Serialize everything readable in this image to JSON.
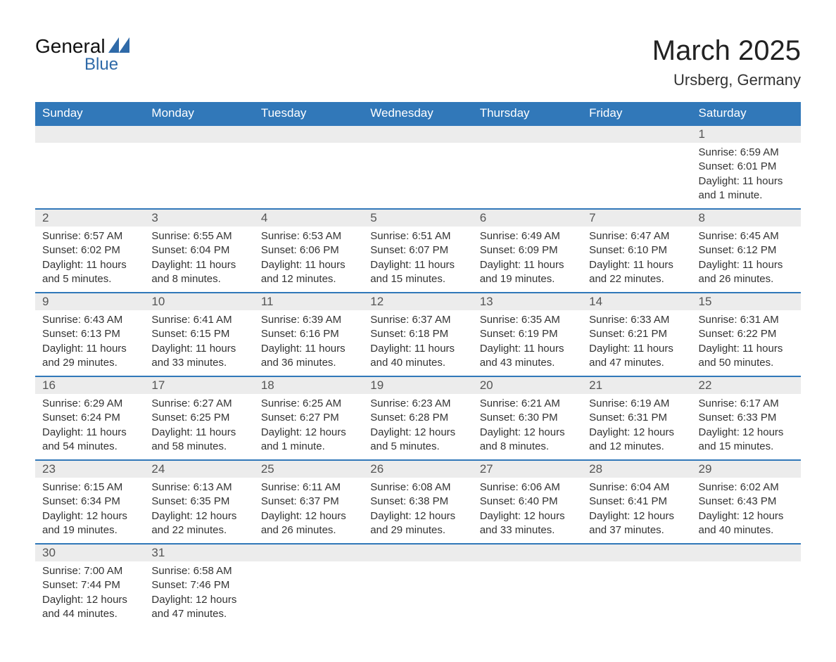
{
  "logo": {
    "text_general": "General",
    "text_blue": "Blue",
    "mark_color": "#2f6aa8"
  },
  "title": {
    "month": "March 2025",
    "location": "Ursberg, Germany"
  },
  "colors": {
    "header_bg": "#3178b9",
    "header_text": "#ffffff",
    "daynum_bg": "#ececec",
    "row_border": "#3178b9",
    "text": "#333333"
  },
  "weekdays": [
    "Sunday",
    "Monday",
    "Tuesday",
    "Wednesday",
    "Thursday",
    "Friday",
    "Saturday"
  ],
  "weeks": [
    {
      "days": [
        {
          "num": "",
          "sunrise": "",
          "sunset": "",
          "daylight1": "",
          "daylight2": ""
        },
        {
          "num": "",
          "sunrise": "",
          "sunset": "",
          "daylight1": "",
          "daylight2": ""
        },
        {
          "num": "",
          "sunrise": "",
          "sunset": "",
          "daylight1": "",
          "daylight2": ""
        },
        {
          "num": "",
          "sunrise": "",
          "sunset": "",
          "daylight1": "",
          "daylight2": ""
        },
        {
          "num": "",
          "sunrise": "",
          "sunset": "",
          "daylight1": "",
          "daylight2": ""
        },
        {
          "num": "",
          "sunrise": "",
          "sunset": "",
          "daylight1": "",
          "daylight2": ""
        },
        {
          "num": "1",
          "sunrise": "Sunrise: 6:59 AM",
          "sunset": "Sunset: 6:01 PM",
          "daylight1": "Daylight: 11 hours",
          "daylight2": "and 1 minute."
        }
      ]
    },
    {
      "days": [
        {
          "num": "2",
          "sunrise": "Sunrise: 6:57 AM",
          "sunset": "Sunset: 6:02 PM",
          "daylight1": "Daylight: 11 hours",
          "daylight2": "and 5 minutes."
        },
        {
          "num": "3",
          "sunrise": "Sunrise: 6:55 AM",
          "sunset": "Sunset: 6:04 PM",
          "daylight1": "Daylight: 11 hours",
          "daylight2": "and 8 minutes."
        },
        {
          "num": "4",
          "sunrise": "Sunrise: 6:53 AM",
          "sunset": "Sunset: 6:06 PM",
          "daylight1": "Daylight: 11 hours",
          "daylight2": "and 12 minutes."
        },
        {
          "num": "5",
          "sunrise": "Sunrise: 6:51 AM",
          "sunset": "Sunset: 6:07 PM",
          "daylight1": "Daylight: 11 hours",
          "daylight2": "and 15 minutes."
        },
        {
          "num": "6",
          "sunrise": "Sunrise: 6:49 AM",
          "sunset": "Sunset: 6:09 PM",
          "daylight1": "Daylight: 11 hours",
          "daylight2": "and 19 minutes."
        },
        {
          "num": "7",
          "sunrise": "Sunrise: 6:47 AM",
          "sunset": "Sunset: 6:10 PM",
          "daylight1": "Daylight: 11 hours",
          "daylight2": "and 22 minutes."
        },
        {
          "num": "8",
          "sunrise": "Sunrise: 6:45 AM",
          "sunset": "Sunset: 6:12 PM",
          "daylight1": "Daylight: 11 hours",
          "daylight2": "and 26 minutes."
        }
      ]
    },
    {
      "days": [
        {
          "num": "9",
          "sunrise": "Sunrise: 6:43 AM",
          "sunset": "Sunset: 6:13 PM",
          "daylight1": "Daylight: 11 hours",
          "daylight2": "and 29 minutes."
        },
        {
          "num": "10",
          "sunrise": "Sunrise: 6:41 AM",
          "sunset": "Sunset: 6:15 PM",
          "daylight1": "Daylight: 11 hours",
          "daylight2": "and 33 minutes."
        },
        {
          "num": "11",
          "sunrise": "Sunrise: 6:39 AM",
          "sunset": "Sunset: 6:16 PM",
          "daylight1": "Daylight: 11 hours",
          "daylight2": "and 36 minutes."
        },
        {
          "num": "12",
          "sunrise": "Sunrise: 6:37 AM",
          "sunset": "Sunset: 6:18 PM",
          "daylight1": "Daylight: 11 hours",
          "daylight2": "and 40 minutes."
        },
        {
          "num": "13",
          "sunrise": "Sunrise: 6:35 AM",
          "sunset": "Sunset: 6:19 PM",
          "daylight1": "Daylight: 11 hours",
          "daylight2": "and 43 minutes."
        },
        {
          "num": "14",
          "sunrise": "Sunrise: 6:33 AM",
          "sunset": "Sunset: 6:21 PM",
          "daylight1": "Daylight: 11 hours",
          "daylight2": "and 47 minutes."
        },
        {
          "num": "15",
          "sunrise": "Sunrise: 6:31 AM",
          "sunset": "Sunset: 6:22 PM",
          "daylight1": "Daylight: 11 hours",
          "daylight2": "and 50 minutes."
        }
      ]
    },
    {
      "days": [
        {
          "num": "16",
          "sunrise": "Sunrise: 6:29 AM",
          "sunset": "Sunset: 6:24 PM",
          "daylight1": "Daylight: 11 hours",
          "daylight2": "and 54 minutes."
        },
        {
          "num": "17",
          "sunrise": "Sunrise: 6:27 AM",
          "sunset": "Sunset: 6:25 PM",
          "daylight1": "Daylight: 11 hours",
          "daylight2": "and 58 minutes."
        },
        {
          "num": "18",
          "sunrise": "Sunrise: 6:25 AM",
          "sunset": "Sunset: 6:27 PM",
          "daylight1": "Daylight: 12 hours",
          "daylight2": "and 1 minute."
        },
        {
          "num": "19",
          "sunrise": "Sunrise: 6:23 AM",
          "sunset": "Sunset: 6:28 PM",
          "daylight1": "Daylight: 12 hours",
          "daylight2": "and 5 minutes."
        },
        {
          "num": "20",
          "sunrise": "Sunrise: 6:21 AM",
          "sunset": "Sunset: 6:30 PM",
          "daylight1": "Daylight: 12 hours",
          "daylight2": "and 8 minutes."
        },
        {
          "num": "21",
          "sunrise": "Sunrise: 6:19 AM",
          "sunset": "Sunset: 6:31 PM",
          "daylight1": "Daylight: 12 hours",
          "daylight2": "and 12 minutes."
        },
        {
          "num": "22",
          "sunrise": "Sunrise: 6:17 AM",
          "sunset": "Sunset: 6:33 PM",
          "daylight1": "Daylight: 12 hours",
          "daylight2": "and 15 minutes."
        }
      ]
    },
    {
      "days": [
        {
          "num": "23",
          "sunrise": "Sunrise: 6:15 AM",
          "sunset": "Sunset: 6:34 PM",
          "daylight1": "Daylight: 12 hours",
          "daylight2": "and 19 minutes."
        },
        {
          "num": "24",
          "sunrise": "Sunrise: 6:13 AM",
          "sunset": "Sunset: 6:35 PM",
          "daylight1": "Daylight: 12 hours",
          "daylight2": "and 22 minutes."
        },
        {
          "num": "25",
          "sunrise": "Sunrise: 6:11 AM",
          "sunset": "Sunset: 6:37 PM",
          "daylight1": "Daylight: 12 hours",
          "daylight2": "and 26 minutes."
        },
        {
          "num": "26",
          "sunrise": "Sunrise: 6:08 AM",
          "sunset": "Sunset: 6:38 PM",
          "daylight1": "Daylight: 12 hours",
          "daylight2": "and 29 minutes."
        },
        {
          "num": "27",
          "sunrise": "Sunrise: 6:06 AM",
          "sunset": "Sunset: 6:40 PM",
          "daylight1": "Daylight: 12 hours",
          "daylight2": "and 33 minutes."
        },
        {
          "num": "28",
          "sunrise": "Sunrise: 6:04 AM",
          "sunset": "Sunset: 6:41 PM",
          "daylight1": "Daylight: 12 hours",
          "daylight2": "and 37 minutes."
        },
        {
          "num": "29",
          "sunrise": "Sunrise: 6:02 AM",
          "sunset": "Sunset: 6:43 PM",
          "daylight1": "Daylight: 12 hours",
          "daylight2": "and 40 minutes."
        }
      ]
    },
    {
      "days": [
        {
          "num": "30",
          "sunrise": "Sunrise: 7:00 AM",
          "sunset": "Sunset: 7:44 PM",
          "daylight1": "Daylight: 12 hours",
          "daylight2": "and 44 minutes."
        },
        {
          "num": "31",
          "sunrise": "Sunrise: 6:58 AM",
          "sunset": "Sunset: 7:46 PM",
          "daylight1": "Daylight: 12 hours",
          "daylight2": "and 47 minutes."
        },
        {
          "num": "",
          "sunrise": "",
          "sunset": "",
          "daylight1": "",
          "daylight2": ""
        },
        {
          "num": "",
          "sunrise": "",
          "sunset": "",
          "daylight1": "",
          "daylight2": ""
        },
        {
          "num": "",
          "sunrise": "",
          "sunset": "",
          "daylight1": "",
          "daylight2": ""
        },
        {
          "num": "",
          "sunrise": "",
          "sunset": "",
          "daylight1": "",
          "daylight2": ""
        },
        {
          "num": "",
          "sunrise": "",
          "sunset": "",
          "daylight1": "",
          "daylight2": ""
        }
      ]
    }
  ]
}
